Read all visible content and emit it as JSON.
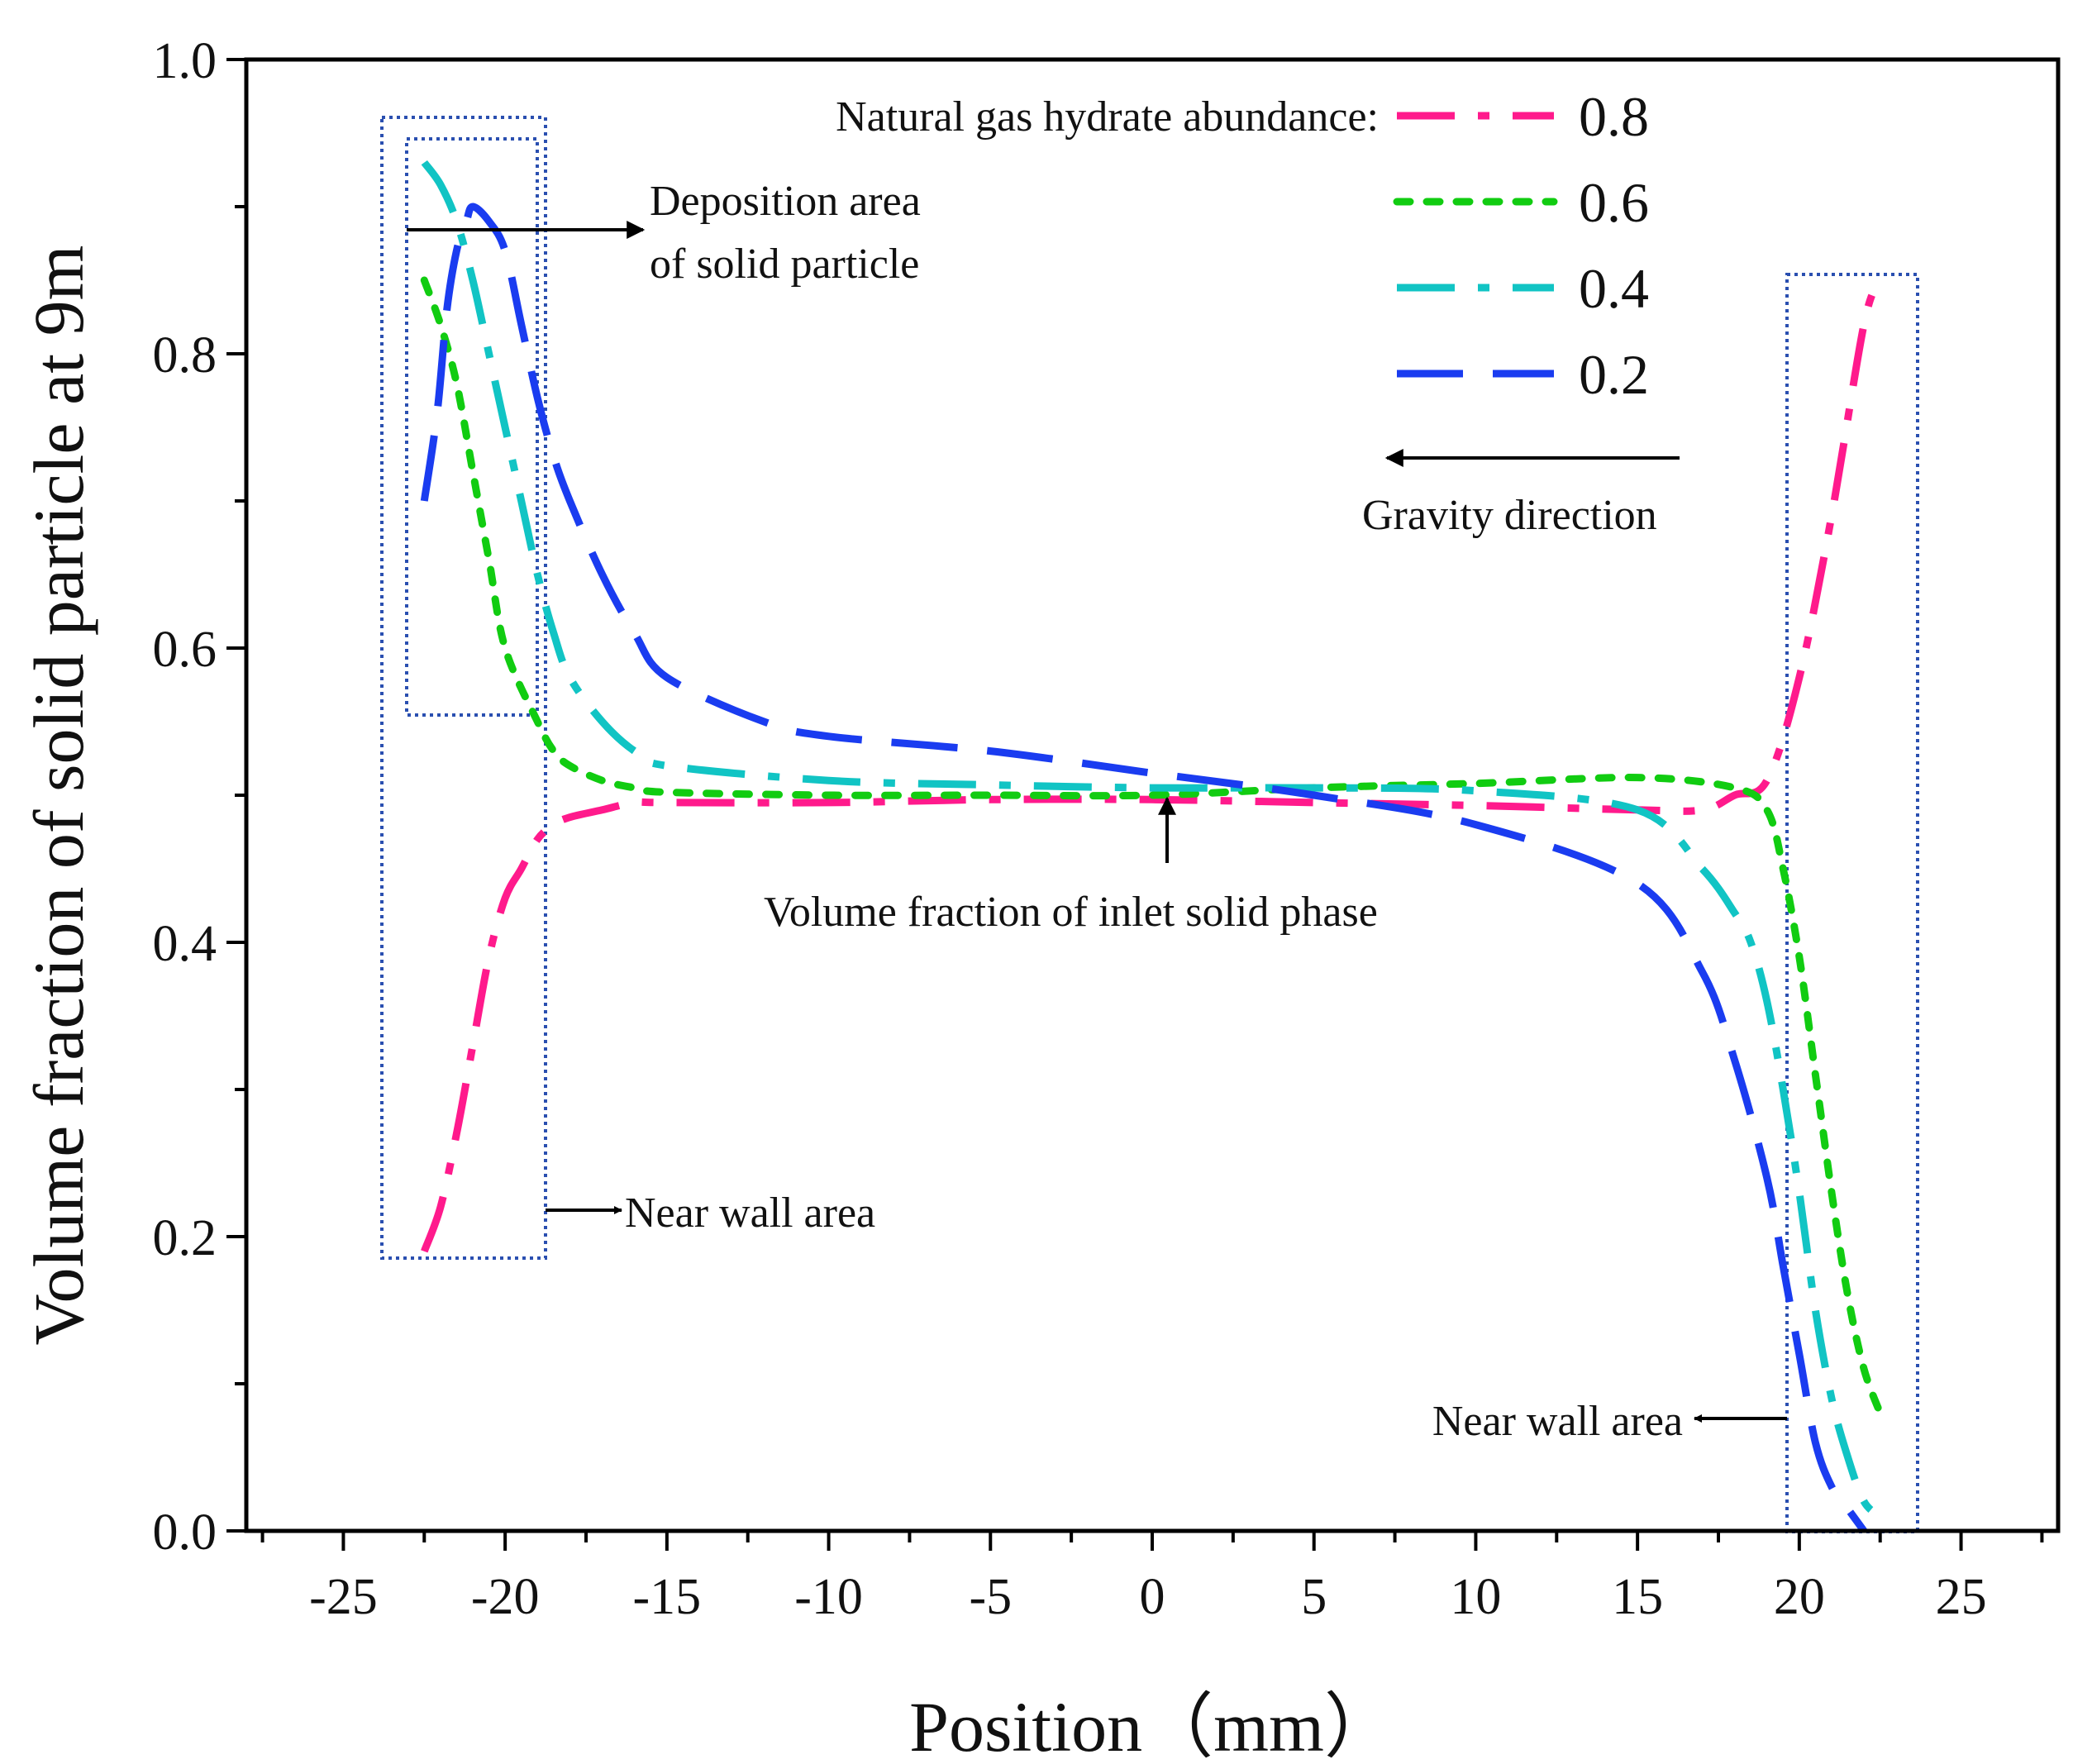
{
  "chart_data": {
    "type": "line",
    "title": "",
    "xlabel": "Position（mm）",
    "ylabel": "Volume fraction of solid particle at 9m",
    "xlim": [
      -28,
      28
    ],
    "ylim": [
      0.0,
      1.0
    ],
    "xticks": [
      -25,
      -20,
      -15,
      -10,
      -5,
      0,
      5,
      10,
      15,
      20,
      25
    ],
    "xtick_labels": [
      "-25",
      "-20",
      "-15",
      "-10",
      "-5",
      "0",
      "5",
      "10",
      "15",
      "20",
      "25"
    ],
    "yticks": [
      0.0,
      0.2,
      0.4,
      0.6,
      0.8,
      1.0
    ],
    "ytick_labels": [
      "0.0",
      "0.2",
      "0.4",
      "0.6",
      "0.8",
      "1.0"
    ],
    "grid": false,
    "legend": {
      "title": "Natural gas hydrate abundance:",
      "position": "top-right"
    },
    "series": [
      {
        "name": "0.8",
        "color": "#ff1a8c",
        "dash": "dash-dot",
        "x": [
          -22.5,
          -22,
          -21.5,
          -21,
          -20.5,
          -20,
          -19.5,
          -19,
          -18.5,
          -18,
          -17,
          -16,
          -15,
          -10,
          -5,
          0,
          5,
          10,
          15,
          17,
          18,
          19,
          20,
          21,
          22,
          22.5
        ],
        "y": [
          0.19,
          0.22,
          0.27,
          0.33,
          0.39,
          0.43,
          0.45,
          0.47,
          0.48,
          0.485,
          0.49,
          0.495,
          0.495,
          0.495,
          0.497,
          0.497,
          0.495,
          0.493,
          0.49,
          0.49,
          0.5,
          0.51,
          0.58,
          0.69,
          0.82,
          0.85
        ]
      },
      {
        "name": "0.6",
        "color": "#11cc11",
        "dash": "dot",
        "x": [
          -22.5,
          -22,
          -21.5,
          -21,
          -20.5,
          -20,
          -19,
          -18.5,
          -18,
          -17,
          -16,
          -15,
          -10,
          -5,
          0,
          5,
          10,
          15,
          18,
          19,
          19.5,
          20,
          20.5,
          21,
          21.5,
          22,
          22.5
        ],
        "y": [
          0.85,
          0.82,
          0.78,
          0.72,
          0.66,
          0.6,
          0.55,
          0.53,
          0.52,
          0.51,
          0.505,
          0.502,
          0.5,
          0.5,
          0.5,
          0.505,
          0.508,
          0.512,
          0.505,
          0.49,
          0.45,
          0.39,
          0.31,
          0.23,
          0.16,
          0.11,
          0.08
        ]
      },
      {
        "name": "0.4",
        "color": "#11c4c4",
        "dash": "dash-dot",
        "x": [
          -22.5,
          -22,
          -21.5,
          -21,
          -20.5,
          -20,
          -19.5,
          -19,
          -18.5,
          -18,
          -17,
          -16,
          -15,
          -10,
          -5,
          0,
          5,
          10,
          15,
          17,
          18,
          18.5,
          19,
          19.5,
          20,
          20.5,
          21,
          21.5,
          22,
          22.5
        ],
        "y": [
          0.93,
          0.915,
          0.89,
          0.85,
          0.8,
          0.75,
          0.7,
          0.65,
          0.61,
          0.58,
          0.55,
          0.53,
          0.52,
          0.51,
          0.507,
          0.505,
          0.505,
          0.503,
          0.49,
          0.45,
          0.42,
          0.4,
          0.36,
          0.3,
          0.23,
          0.15,
          0.09,
          0.05,
          0.02,
          0.01
        ]
      },
      {
        "name": "0.2",
        "color": "#1a3cf0",
        "dash": "dash",
        "x": [
          -22.5,
          -22.1,
          -21.8,
          -21.5,
          -21.2,
          -21,
          -20.5,
          -20,
          -19.5,
          -19,
          -18.5,
          -18,
          -17,
          -16,
          -15,
          -12,
          -10,
          -5,
          0,
          5,
          10,
          15,
          17,
          18,
          19,
          19.5,
          20,
          20.5,
          21,
          21.5,
          22
        ],
        "y": [
          0.7,
          0.76,
          0.83,
          0.87,
          0.89,
          0.9,
          0.89,
          0.87,
          0.82,
          0.77,
          0.73,
          0.7,
          0.65,
          0.61,
          0.58,
          0.55,
          0.54,
          0.53,
          0.515,
          0.5,
          0.48,
          0.44,
          0.38,
          0.32,
          0.24,
          0.18,
          0.12,
          0.06,
          0.03,
          0.015,
          0.0
        ]
      }
    ],
    "annotations": {
      "deposition_line1": "Deposition area",
      "deposition_line2": "of solid particle",
      "gravity": "Gravity direction",
      "inlet": "Volume fraction of inlet solid phase",
      "near_wall_left": "Near wall area",
      "near_wall_right": "Near wall area"
    }
  }
}
